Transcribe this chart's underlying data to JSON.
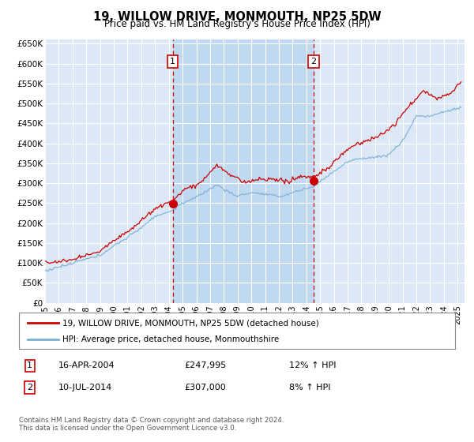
{
  "title": "19, WILLOW DRIVE, MONMOUTH, NP25 5DW",
  "subtitle": "Price paid vs. HM Land Registry's House Price Index (HPI)",
  "ylim": [
    0,
    660000
  ],
  "xlim_start": 1995.0,
  "xlim_end": 2025.5,
  "fig_bg_color": "#ffffff",
  "plot_bg_color": "#dce8f5",
  "shade_color": "#c0d8f0",
  "grid_color": "#ffffff",
  "sale1_date": "16-APR-2004",
  "sale1_price": 247995,
  "sale1_pct": "12% ↑ HPI",
  "sale2_date": "10-JUL-2014",
  "sale2_price": 307000,
  "sale2_pct": "8% ↑ HPI",
  "sale1_x": 2004.29,
  "sale2_x": 2014.53,
  "legend_line1": "19, WILLOW DRIVE, MONMOUTH, NP25 5DW (detached house)",
  "legend_line2": "HPI: Average price, detached house, Monmouthshire",
  "footer": "Contains HM Land Registry data © Crown copyright and database right 2024.\nThis data is licensed under the Open Government Licence v3.0.",
  "line_color_red": "#cc0000",
  "line_color_blue": "#7aafd4",
  "vline_color": "#cc0000",
  "annotation_box_color": "#cc0000",
  "box_color": "#cc0000"
}
